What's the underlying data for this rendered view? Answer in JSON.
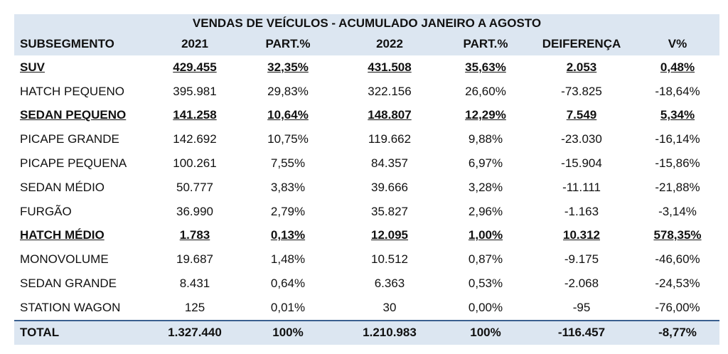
{
  "header": {
    "title": "VENDAS DE VEÍCULOS - ACUMULADO JANEIRO A AGOSTO",
    "columns": [
      "SUBSEGMENTO",
      "2021",
      "PART.%",
      "2022",
      "PART.%",
      "DEIFERENÇA",
      "V%"
    ]
  },
  "table": {
    "rows": [
      {
        "cells": [
          "SUV",
          "429.455",
          "32,35%",
          "431.508",
          "35,63%",
          "2.053",
          "0,48%"
        ],
        "emphasis": true
      },
      {
        "cells": [
          "HATCH PEQUENO",
          "395.981",
          "29,83%",
          "322.156",
          "26,60%",
          "-73.825",
          "-18,64%"
        ],
        "emphasis": false
      },
      {
        "cells": [
          "SEDAN PEQUENO",
          "141.258",
          "10,64%",
          "148.807",
          "12,29%",
          "7.549",
          "5,34%"
        ],
        "emphasis": true
      },
      {
        "cells": [
          "PICAPE GRANDE",
          "142.692",
          "10,75%",
          "119.662",
          "9,88%",
          "-23.030",
          "-16,14%"
        ],
        "emphasis": false
      },
      {
        "cells": [
          "PICAPE PEQUENA",
          "100.261",
          "7,55%",
          "84.357",
          "6,97%",
          "-15.904",
          "-15,86%"
        ],
        "emphasis": false
      },
      {
        "cells": [
          "SEDAN MÉDIO",
          "50.777",
          "3,83%",
          "39.666",
          "3,28%",
          "-11.111",
          "-21,88%"
        ],
        "emphasis": false
      },
      {
        "cells": [
          "FURGÃO",
          "36.990",
          "2,79%",
          "35.827",
          "2,96%",
          "-1.163",
          "-3,14%"
        ],
        "emphasis": false
      },
      {
        "cells": [
          "HATCH MÉDIO",
          "1.783",
          "0,13%",
          "12.095",
          "1,00%",
          "10.312",
          "578,35%"
        ],
        "emphasis": true
      },
      {
        "cells": [
          "MONOVOLUME",
          "19.687",
          "1,48%",
          "10.512",
          "0,87%",
          "-9.175",
          "-46,60%"
        ],
        "emphasis": false
      },
      {
        "cells": [
          "SEDAN GRANDE",
          "8.431",
          "0,64%",
          "6.363",
          "0,53%",
          "-2.068",
          "-24,53%"
        ],
        "emphasis": false
      },
      {
        "cells": [
          "STATION WAGON",
          "125",
          "0,01%",
          "30",
          "0,00%",
          "-95",
          "-76,00%"
        ],
        "emphasis": false
      }
    ],
    "total": [
      "TOTAL",
      "1.327.440",
      "100%",
      "1.210.983",
      "100%",
      "-116.457",
      "-8,77%"
    ]
  }
}
